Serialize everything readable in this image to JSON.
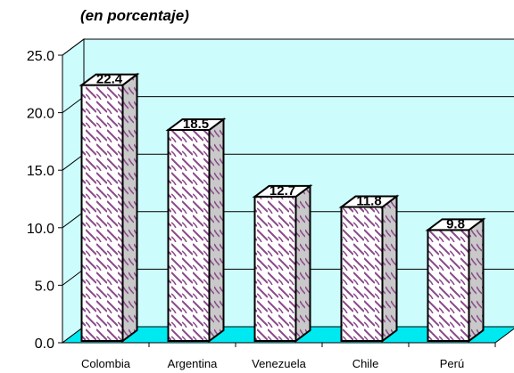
{
  "chart_data": {
    "type": "bar",
    "subtitle": "(en porcentaje)",
    "categories": [
      "Colombia",
      "Argentina",
      "Venezuela",
      "Chile",
      "Perú"
    ],
    "values": [
      22.4,
      18.5,
      12.7,
      11.8,
      9.8
    ],
    "value_labels": [
      "22.4",
      "18.5",
      "12.7",
      "11.8",
      "9.8"
    ],
    "ylim": [
      0,
      25
    ],
    "yticks": [
      "0.0",
      "5.0",
      "10.0",
      "15.0",
      "20.0",
      "25.0"
    ],
    "grid": true,
    "style": "3d-bars-with-pattern",
    "colors": {
      "wall": "#cdfcfc",
      "floor": "#00e8f0",
      "bar_pattern": "#8a4a8a",
      "bar_fill": "#ffffff",
      "bar_side": "#c9c9c9"
    }
  }
}
